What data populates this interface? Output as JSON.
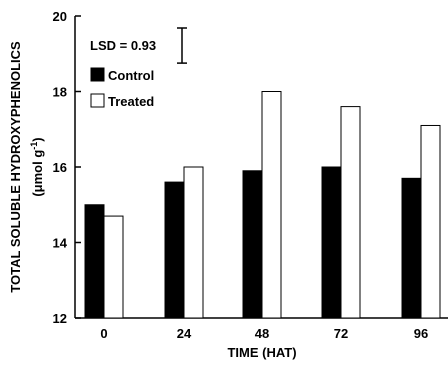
{
  "chart_data": {
    "type": "bar",
    "categories": [
      "0",
      "24",
      "48",
      "72",
      "96"
    ],
    "series": [
      {
        "name": "Control",
        "values": [
          15.0,
          15.6,
          15.9,
          16.0,
          15.7
        ],
        "color": "#000000"
      },
      {
        "name": "Treated",
        "values": [
          14.7,
          16.0,
          18.0,
          17.6,
          17.1
        ],
        "color": "#ffffff"
      }
    ],
    "xlabel": "TIME (HAT)",
    "ylabel_line1": "TOTAL SOLUBLE HYDROXYPHENOLICS",
    "ylabel_line2_prefix": "(μmol g",
    "ylabel_line2_sup": "-1",
    "ylabel_line2_suffix": ")",
    "ylim": [
      12,
      20
    ],
    "yticks": [
      12,
      14,
      16,
      18,
      20
    ],
    "lsd_label": "LSD = 0.93",
    "lsd_value": 0.93,
    "legend_position": "top-left",
    "grid": false
  }
}
